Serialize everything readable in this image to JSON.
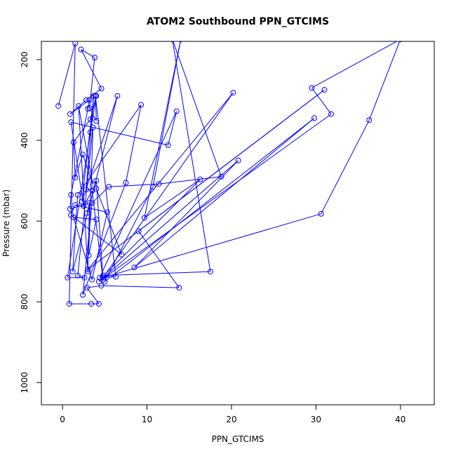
{
  "chart_data": {
    "type": "line",
    "title": "ATOM2 Southbound PPN_GTCIMS",
    "xlabel": "PPN_GTCIMS",
    "ylabel": "Pressure (mbar)",
    "xlim": [
      -2.5,
      44
    ],
    "ylim": [
      1055,
      155
    ],
    "y_reversed": true,
    "x_ticks": [
      0,
      10,
      20,
      30,
      40
    ],
    "y_ticks": [
      200,
      400,
      600,
      800,
      1000
    ],
    "grid": false,
    "legend": "none",
    "series_color": "#0000ff",
    "marker": "open-circle",
    "series": [
      {
        "values": [
          [
            -0.5,
            315
          ],
          [
            1.5,
            160
          ],
          [
            0.8,
            805
          ],
          [
            3.4,
            805
          ],
          [
            4.3,
            805
          ],
          [
            2.9,
            765
          ],
          [
            4.6,
            760
          ],
          [
            13.8,
            765
          ],
          [
            9.0,
            625
          ],
          [
            31.0,
            275
          ],
          [
            3.0,
            720
          ],
          [
            20.2,
            282
          ],
          [
            4.8,
            740
          ],
          [
            30.6,
            582
          ],
          [
            36.3,
            350
          ],
          [
            40.0,
            150
          ],
          [
            29.5,
            270
          ],
          [
            31.8,
            335
          ],
          [
            4.3,
            750
          ],
          [
            20.8,
            450
          ],
          [
            8.5,
            715
          ],
          [
            29.8,
            345
          ],
          [
            5.0,
            750
          ],
          [
            10.7,
            515
          ],
          [
            14.0,
            150
          ],
          [
            9.7,
            592
          ],
          [
            16.3,
            497
          ],
          [
            4.9,
            735
          ],
          [
            17.5,
            725
          ],
          [
            13.0,
            150
          ],
          [
            18.8,
            490
          ],
          [
            11.4,
            508
          ],
          [
            5.5,
            515
          ],
          [
            3.5,
            555
          ],
          [
            2.4,
            783
          ],
          [
            7.5,
            505
          ],
          [
            9.3,
            312
          ],
          [
            1.8,
            535
          ],
          [
            1.2,
            725
          ],
          [
            6.5,
            290
          ],
          [
            2.3,
            552
          ],
          [
            3.7,
            290
          ],
          [
            2.8,
            522
          ],
          [
            4.0,
            520
          ],
          [
            7.0,
            683
          ],
          [
            1.0,
            585
          ],
          [
            1.5,
            560
          ],
          [
            5.3,
            578
          ],
          [
            3.5,
            745
          ],
          [
            1.3,
            591
          ],
          [
            4.0,
            596
          ],
          [
            3.1,
            685
          ],
          [
            3.6,
            368
          ],
          [
            1.8,
            735
          ],
          [
            2.6,
            740
          ],
          [
            0.6,
            740
          ],
          [
            3.3,
            380
          ],
          [
            4.0,
            290
          ],
          [
            3.3,
            348
          ],
          [
            1.3,
            405
          ],
          [
            1.5,
            492
          ],
          [
            2.4,
            435
          ],
          [
            3.6,
            510
          ],
          [
            1.9,
            315
          ],
          [
            3.0,
            725
          ],
          [
            3.2,
            555
          ],
          [
            0.9,
            570
          ],
          [
            1.0,
            535
          ],
          [
            3.0,
            322
          ],
          [
            3.2,
            300
          ],
          [
            0.9,
            335
          ],
          [
            2.8,
            300
          ],
          [
            4.6,
            272
          ],
          [
            2.2,
            175
          ],
          [
            3.8,
            195
          ],
          [
            3.2,
            320
          ],
          [
            4.0,
            352
          ],
          [
            3.9,
            290
          ],
          [
            6.3,
            738
          ],
          [
            4.4,
            740
          ],
          [
            13.5,
            328
          ],
          [
            12.5,
            412
          ],
          [
            1.0,
            355
          ],
          [
            2.5,
            563
          ],
          [
            3.5,
            525
          ],
          [
            4.8,
            745
          ],
          [
            4.0,
            500
          ],
          [
            2.9,
            580
          ]
        ]
      }
    ]
  }
}
